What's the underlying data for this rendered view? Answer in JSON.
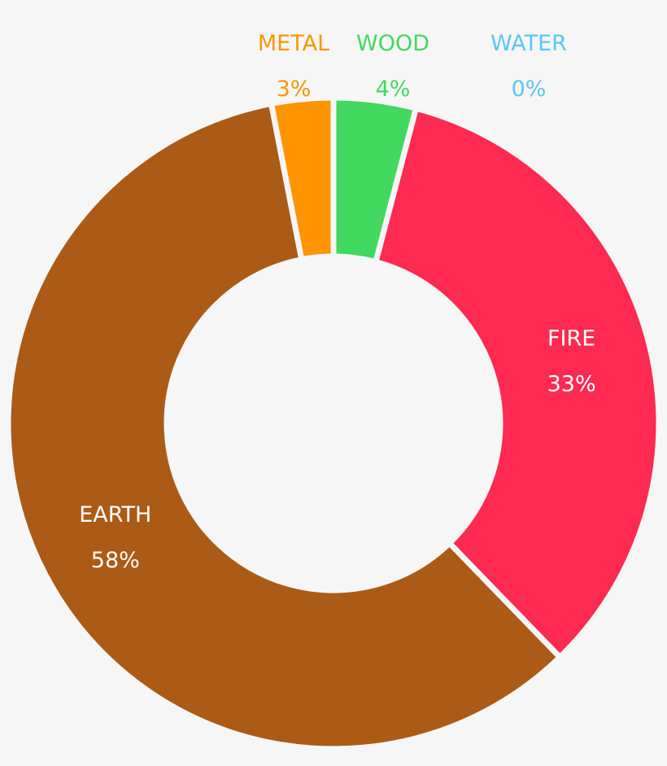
{
  "chart_data": {
    "type": "pie",
    "title": "",
    "donut": true,
    "slices": [
      {
        "name": "WOOD",
        "value": 4,
        "percent_label": "4%",
        "color": "#43d85f",
        "label_position": "outside"
      },
      {
        "name": "FIRE",
        "value": 33,
        "percent_label": "33%",
        "color": "#ff2a52",
        "label_position": "inside"
      },
      {
        "name": "EARTH",
        "value": 58,
        "percent_label": "58%",
        "color": "#ab5b16",
        "label_position": "inside"
      },
      {
        "name": "METAL",
        "value": 3,
        "percent_label": "3%",
        "color": "#fe9500",
        "label_position": "outside"
      },
      {
        "name": "WATER",
        "value": 0,
        "percent_label": "0%",
        "color": "#5ac6f7",
        "label_position": "outside"
      }
    ],
    "inside_label_color": "#ffffff",
    "legend": "none"
  }
}
